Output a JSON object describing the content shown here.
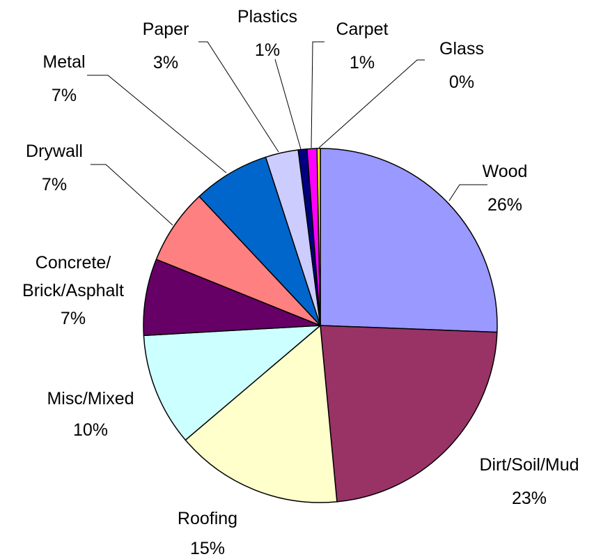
{
  "chart_data": {
    "type": "pie",
    "title": "",
    "slices": [
      {
        "label": "Wood",
        "percent_label": "26%",
        "value": 25.6,
        "color": "#9999FF"
      },
      {
        "label": "Dirt/Soil/Mud",
        "percent_label": "23%",
        "value": 22.9,
        "color": "#993366"
      },
      {
        "label": "Roofing",
        "percent_label": "15%",
        "value": 15.3,
        "color": "#FFFFCC"
      },
      {
        "label": "Misc/Mixed",
        "percent_label": "10%",
        "value": 10.3,
        "color": "#CCFFFF"
      },
      {
        "label_lines": [
          "Concrete/",
          "Brick/Asphalt"
        ],
        "percent_label": "7%",
        "value": 7.0,
        "color": "#660066"
      },
      {
        "label": "Drywall",
        "percent_label": "7%",
        "value": 6.9,
        "color": "#FF8080"
      },
      {
        "label": "Metal",
        "percent_label": "7%",
        "value": 7.0,
        "color": "#0066CC"
      },
      {
        "label": "Paper",
        "percent_label": "3%",
        "value": 3.0,
        "color": "#CCCCFF"
      },
      {
        "label": "Plastics",
        "percent_label": "1%",
        "value": 0.8,
        "color": "#000080"
      },
      {
        "label": "Carpet",
        "percent_label": "1%",
        "value": 0.9,
        "color": "#FF00FF"
      },
      {
        "label": "Glass",
        "percent_label": "0%",
        "value": 0.3,
        "color": "#FFFF00"
      }
    ]
  }
}
